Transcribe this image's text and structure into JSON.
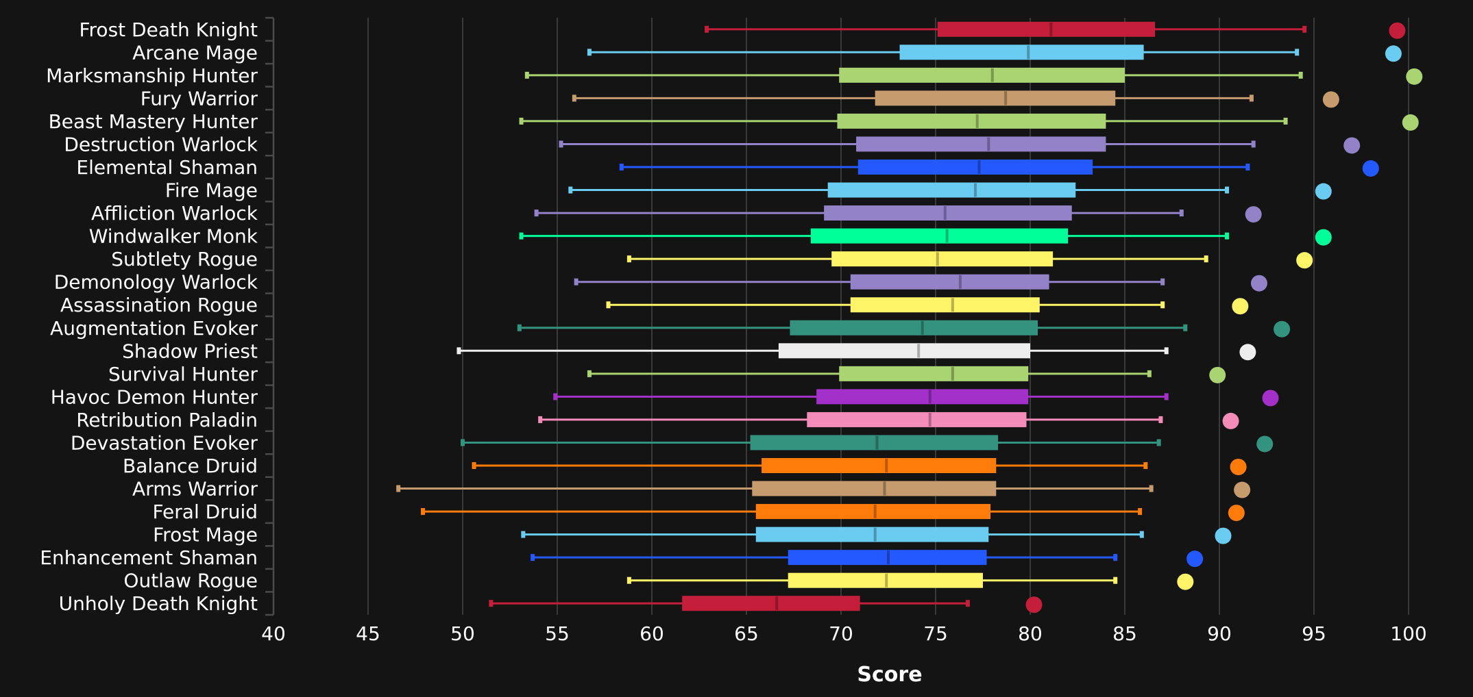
{
  "chart_data": {
    "type": "boxplot",
    "title": "",
    "xlabel": "Score",
    "ylabel": "",
    "xlim": [
      40,
      101.5
    ],
    "xticks": [
      40,
      45,
      50,
      55,
      60,
      65,
      70,
      75,
      80,
      85,
      90,
      95,
      100
    ],
    "grid": "vertical",
    "legend": "none",
    "series": [
      {
        "name": "Frost Death Knight",
        "color": "#C41E3A",
        "whisker_low": 62.9,
        "q1": 75.1,
        "median": 81.1,
        "q3": 86.6,
        "whisker_high": 94.5,
        "max_point": 99.4
      },
      {
        "name": "Arcane Mage",
        "color": "#69CCF0",
        "whisker_low": 56.7,
        "q1": 73.1,
        "median": 79.9,
        "q3": 86.0,
        "whisker_high": 94.1,
        "max_point": 99.2
      },
      {
        "name": "Marksmanship Hunter",
        "color": "#AAD372",
        "whisker_low": 53.4,
        "q1": 69.9,
        "median": 78.0,
        "q3": 85.0,
        "whisker_high": 94.3,
        "max_point": 100.3
      },
      {
        "name": "Fury Warrior",
        "color": "#C69B6D",
        "whisker_low": 55.9,
        "q1": 71.8,
        "median": 78.7,
        "q3": 84.5,
        "whisker_high": 91.7,
        "max_point": 95.9
      },
      {
        "name": "Beast Mastery Hunter",
        "color": "#AAD372",
        "whisker_low": 53.1,
        "q1": 69.8,
        "median": 77.2,
        "q3": 84.0,
        "whisker_high": 93.5,
        "max_point": 100.1
      },
      {
        "name": "Destruction Warlock",
        "color": "#9482C9",
        "whisker_low": 55.2,
        "q1": 70.8,
        "median": 77.8,
        "q3": 84.0,
        "whisker_high": 91.8,
        "max_point": 97.0
      },
      {
        "name": "Elemental Shaman",
        "color": "#2459FF",
        "whisker_low": 58.4,
        "q1": 70.9,
        "median": 77.3,
        "q3": 83.3,
        "whisker_high": 91.5,
        "max_point": 98.0
      },
      {
        "name": "Fire Mage",
        "color": "#69CCF0",
        "whisker_low": 55.7,
        "q1": 69.3,
        "median": 77.1,
        "q3": 82.4,
        "whisker_high": 90.4,
        "max_point": 95.5
      },
      {
        "name": "Affliction Warlock",
        "color": "#9482C9",
        "whisker_low": 53.9,
        "q1": 69.1,
        "median": 75.5,
        "q3": 82.2,
        "whisker_high": 88.0,
        "max_point": 91.8
      },
      {
        "name": "Windwalker Monk",
        "color": "#00FF98",
        "whisker_low": 53.1,
        "q1": 68.4,
        "median": 75.6,
        "q3": 82.0,
        "whisker_high": 90.4,
        "max_point": 95.5
      },
      {
        "name": "Subtlety Rogue",
        "color": "#FFF468",
        "whisker_low": 58.8,
        "q1": 69.5,
        "median": 75.1,
        "q3": 81.2,
        "whisker_high": 89.3,
        "max_point": 94.5
      },
      {
        "name": "Demonology Warlock",
        "color": "#9482C9",
        "whisker_low": 56.0,
        "q1": 70.5,
        "median": 76.3,
        "q3": 81.0,
        "whisker_high": 87.0,
        "max_point": 92.1
      },
      {
        "name": "Assassination Rogue",
        "color": "#FFF468",
        "whisker_low": 57.7,
        "q1": 70.5,
        "median": 75.9,
        "q3": 80.5,
        "whisker_high": 87.0,
        "max_point": 91.1
      },
      {
        "name": "Augmentation Evoker",
        "color": "#33937F",
        "whisker_low": 53.0,
        "q1": 67.3,
        "median": 74.3,
        "q3": 80.4,
        "whisker_high": 88.2,
        "max_point": 93.3
      },
      {
        "name": "Shadow Priest",
        "color": "#EEEEEE",
        "whisker_low": 49.8,
        "q1": 66.7,
        "median": 74.1,
        "q3": 80.0,
        "whisker_high": 87.2,
        "max_point": 91.5
      },
      {
        "name": "Survival Hunter",
        "color": "#AAD372",
        "whisker_low": 56.7,
        "q1": 69.9,
        "median": 75.9,
        "q3": 79.9,
        "whisker_high": 86.3,
        "max_point": 89.9
      },
      {
        "name": "Havoc Demon Hunter",
        "color": "#A330C9",
        "whisker_low": 54.9,
        "q1": 68.7,
        "median": 74.7,
        "q3": 79.9,
        "whisker_high": 87.2,
        "max_point": 92.7
      },
      {
        "name": "Retribution Paladin",
        "color": "#F48CBA",
        "whisker_low": 54.1,
        "q1": 68.2,
        "median": 74.7,
        "q3": 79.8,
        "whisker_high": 86.9,
        "max_point": 90.6
      },
      {
        "name": "Devastation Evoker",
        "color": "#33937F",
        "whisker_low": 50.0,
        "q1": 65.2,
        "median": 71.9,
        "q3": 78.3,
        "whisker_high": 86.8,
        "max_point": 92.4
      },
      {
        "name": "Balance Druid",
        "color": "#FF7C0A",
        "whisker_low": 50.6,
        "q1": 65.8,
        "median": 72.4,
        "q3": 78.2,
        "whisker_high": 86.1,
        "max_point": 91.0
      },
      {
        "name": "Arms Warrior",
        "color": "#C69B6D",
        "whisker_low": 46.6,
        "q1": 65.3,
        "median": 72.3,
        "q3": 78.2,
        "whisker_high": 86.4,
        "max_point": 91.2
      },
      {
        "name": "Feral Druid",
        "color": "#FF7C0A",
        "whisker_low": 47.9,
        "q1": 65.5,
        "median": 71.8,
        "q3": 77.9,
        "whisker_high": 85.8,
        "max_point": 90.9
      },
      {
        "name": "Frost Mage",
        "color": "#69CCF0",
        "whisker_low": 53.2,
        "q1": 65.5,
        "median": 71.8,
        "q3": 77.8,
        "whisker_high": 85.9,
        "max_point": 90.2
      },
      {
        "name": "Enhancement Shaman",
        "color": "#2459FF",
        "whisker_low": 53.7,
        "q1": 67.2,
        "median": 72.5,
        "q3": 77.7,
        "whisker_high": 84.5,
        "max_point": 88.7
      },
      {
        "name": "Outlaw Rogue",
        "color": "#FFF468",
        "whisker_low": 58.8,
        "q1": 67.2,
        "median": 72.4,
        "q3": 77.5,
        "whisker_high": 84.5,
        "max_point": 88.2
      },
      {
        "name": "Unholy Death Knight",
        "color": "#C41E3A",
        "whisker_low": 51.5,
        "q1": 61.6,
        "median": 66.6,
        "q3": 71.0,
        "whisker_high": 76.7,
        "max_point": 80.2
      }
    ]
  }
}
